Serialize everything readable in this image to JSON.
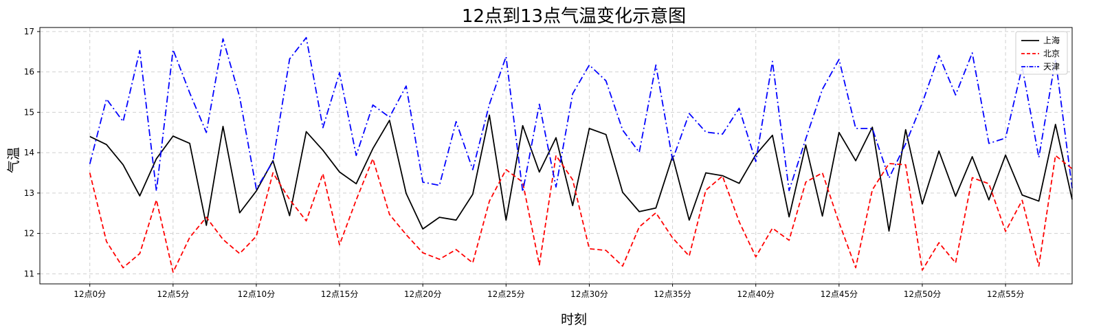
{
  "chart_data": {
    "type": "line",
    "title": "12点到13点气温变化示意图",
    "xlabel": "时刻",
    "ylabel": "气温",
    "ylim": [
      10.75,
      17.1
    ],
    "xlim": [
      -3,
      59
    ],
    "grid": true,
    "legend_position": "top-right",
    "x": [
      0,
      1,
      2,
      3,
      4,
      5,
      6,
      7,
      8,
      9,
      10,
      11,
      12,
      13,
      14,
      15,
      16,
      17,
      18,
      19,
      20,
      21,
      22,
      23,
      24,
      25,
      26,
      27,
      28,
      29,
      30,
      31,
      32,
      33,
      34,
      35,
      36,
      37,
      38,
      39,
      40,
      41,
      42,
      43,
      44,
      45,
      46,
      47,
      48,
      49,
      50,
      51,
      52,
      53,
      54,
      55,
      56,
      57,
      58,
      59
    ],
    "x_ticks": [
      0,
      5,
      10,
      15,
      20,
      25,
      30,
      35,
      40,
      45,
      50,
      55
    ],
    "x_tick_labels": [
      "12点0分",
      "12点5分",
      "12点10分",
      "12点15分",
      "12点20分",
      "12点25分",
      "12点30分",
      "12点35分",
      "12点40分",
      "12点45分",
      "12点50分",
      "12点55分"
    ],
    "y_ticks": [
      11,
      12,
      13,
      14,
      15,
      16,
      17
    ],
    "y_tick_labels": [
      "11",
      "12",
      "13",
      "14",
      "15",
      "16",
      "17"
    ],
    "series": [
      {
        "name": "上海",
        "color": "#000000",
        "style": "solid",
        "values": [
          14.4,
          14.2,
          13.7,
          12.93,
          13.85,
          14.41,
          14.23,
          12.2,
          14.65,
          12.51,
          13.05,
          13.8,
          12.44,
          14.52,
          14.06,
          13.52,
          13.23,
          14.1,
          14.8,
          12.99,
          12.11,
          12.4,
          12.33,
          12.97,
          14.93,
          12.33,
          14.67,
          13.52,
          14.37,
          12.69,
          14.6,
          14.45,
          13.02,
          12.54,
          12.63,
          13.91,
          12.33,
          13.5,
          13.43,
          13.24,
          13.95,
          14.43,
          12.41,
          14.19,
          12.43,
          14.5,
          13.8,
          14.63,
          12.06,
          14.57,
          12.73,
          14.04,
          12.92,
          13.9,
          12.83,
          13.94,
          12.95,
          12.8,
          14.7,
          12.84
        ]
      },
      {
        "name": "北京",
        "color": "#ff0000",
        "style": "dashed",
        "values": [
          13.5,
          11.8,
          11.15,
          11.5,
          12.83,
          11.04,
          11.9,
          12.4,
          11.85,
          11.5,
          11.93,
          13.5,
          12.84,
          12.31,
          13.48,
          11.72,
          12.83,
          13.85,
          12.47,
          11.97,
          11.52,
          11.36,
          11.6,
          11.27,
          12.8,
          13.58,
          13.27,
          11.22,
          13.93,
          13.33,
          11.62,
          11.58,
          11.19,
          12.16,
          12.51,
          11.89,
          11.44,
          13.07,
          13.42,
          12.29,
          11.42,
          12.13,
          11.83,
          13.27,
          13.5,
          12.27,
          11.15,
          13.08,
          13.73,
          13.7,
          11.09,
          11.77,
          11.27,
          13.38,
          13.23,
          12.05,
          12.82,
          11.19,
          13.93,
          13.6
        ]
      },
      {
        "name": "天津",
        "color": "#0000ff",
        "style": "dashdot",
        "values": [
          13.72,
          15.33,
          14.77,
          16.53,
          13.05,
          16.55,
          15.48,
          14.5,
          16.82,
          15.38,
          13.1,
          13.78,
          16.32,
          16.85,
          14.62,
          15.98,
          13.93,
          15.18,
          14.88,
          15.65,
          13.27,
          13.19,
          14.77,
          13.58,
          15.2,
          16.38,
          13.03,
          15.2,
          13.15,
          15.46,
          16.17,
          15.78,
          14.56,
          14.01,
          16.17,
          13.82,
          14.97,
          14.51,
          14.46,
          15.1,
          13.78,
          16.26,
          13.06,
          14.34,
          15.57,
          16.31,
          14.6,
          14.6,
          13.37,
          14.22,
          15.23,
          16.41,
          15.43,
          16.47,
          14.23,
          14.36,
          16.12,
          13.88,
          16.32,
          13.12
        ]
      }
    ]
  }
}
